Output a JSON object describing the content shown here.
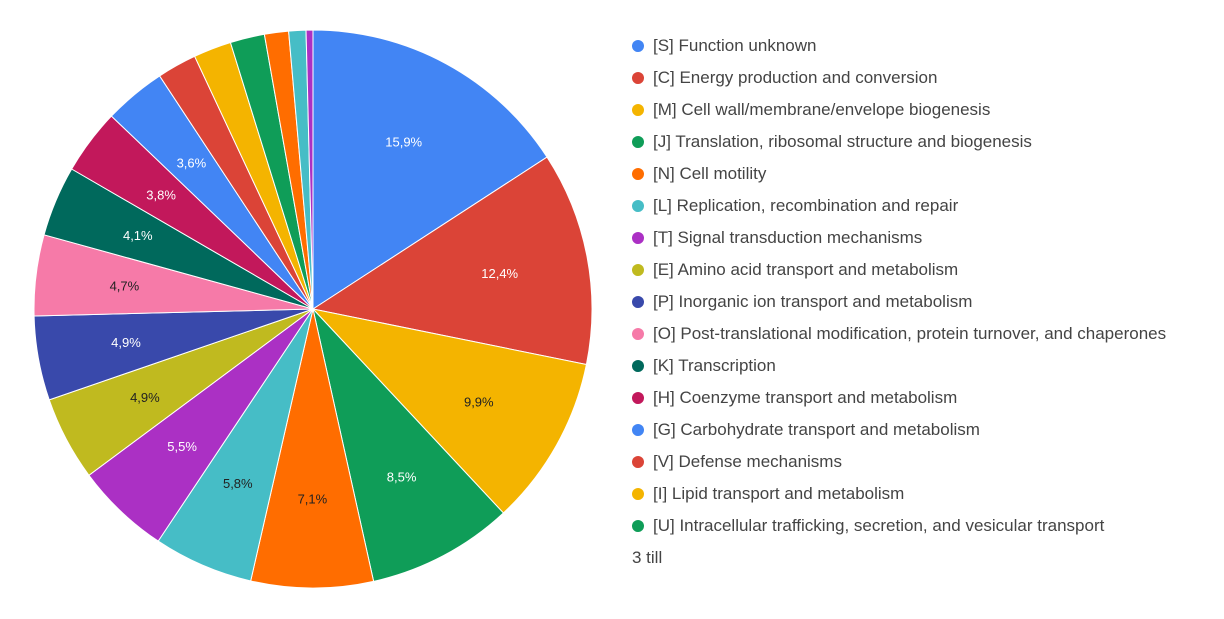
{
  "chart_data": {
    "type": "pie",
    "title": "",
    "legend_position": "right",
    "slices": [
      {
        "label": "[S] Function unknown",
        "value": 15.9,
        "value_label": "15,9%",
        "color": "#4285f4",
        "label_color": "#ffffff"
      },
      {
        "label": "[C] Energy production and conversion",
        "value": 12.4,
        "value_label": "12,4%",
        "color": "#db4437",
        "label_color": "#ffffff"
      },
      {
        "label": "[M] Cell wall/membrane/envelope biogenesis",
        "value": 9.9,
        "value_label": "9,9%",
        "color": "#f4b400",
        "label_color": "#222222"
      },
      {
        "label": "[J] Translation, ribosomal structure and biogenesis",
        "value": 8.5,
        "value_label": "8,5%",
        "color": "#0f9d58",
        "label_color": "#ffffff"
      },
      {
        "label": "[N] Cell motility",
        "value": 7.1,
        "value_label": "7,1%",
        "color": "#ff6d00",
        "label_color": "#222222"
      },
      {
        "label": "[L] Replication, recombination and repair",
        "value": 5.8,
        "value_label": "5,8%",
        "color": "#46bdc6",
        "label_color": "#222222"
      },
      {
        "label": "[T] Signal transduction mechanisms",
        "value": 5.5,
        "value_label": "5,5%",
        "color": "#ab30c4",
        "label_color": "#ffffff"
      },
      {
        "label": "[E] Amino acid transport and metabolism",
        "value": 4.9,
        "value_label": "4,9%",
        "color": "#c0ba1f",
        "label_color": "#222222"
      },
      {
        "label": "[P] Inorganic ion transport and metabolism",
        "value": 4.9,
        "value_label": "4,9%",
        "color": "#3949ab",
        "label_color": "#ffffff"
      },
      {
        "label": "[O] Post-translational modification, protein turnover, and chaperones",
        "value": 4.7,
        "value_label": "4,7%",
        "color": "#f67aa8",
        "label_color": "#222222"
      },
      {
        "label": "[K] Transcription",
        "value": 4.1,
        "value_label": "4,1%",
        "color": "#00695c",
        "label_color": "#ffffff"
      },
      {
        "label": "[H] Coenzyme transport and metabolism",
        "value": 3.8,
        "value_label": "3,8%",
        "color": "#c2185b",
        "label_color": "#ffffff"
      },
      {
        "label": "[G] Carbohydrate transport and metabolism",
        "value": 3.6,
        "value_label": "3,6%",
        "color": "#4285f4",
        "label_color": "#ffffff"
      },
      {
        "label": "[V] Defense mechanisms",
        "value": 2.3,
        "value_label": "",
        "color": "#db4437",
        "label_color": "#ffffff"
      },
      {
        "label": "[I] Lipid transport and metabolism",
        "value": 2.2,
        "value_label": "",
        "color": "#f4b400",
        "label_color": "#222222"
      },
      {
        "label": "[U] Intracellular trafficking, secretion, and vesicular transport",
        "value": 2.0,
        "value_label": "",
        "color": "#0f9d58",
        "label_color": "#ffffff"
      },
      {
        "label": "",
        "value": 1.4,
        "value_label": "",
        "color": "#ff6d00",
        "label_color": "#222222"
      },
      {
        "label": "",
        "value": 1.0,
        "value_label": "",
        "color": "#46bdc6",
        "label_color": "#222222"
      },
      {
        "label": "",
        "value": 0.4,
        "value_label": "",
        "color": "#ab30c4",
        "label_color": "#ffffff"
      }
    ],
    "legend_more_text": "3 till"
  }
}
